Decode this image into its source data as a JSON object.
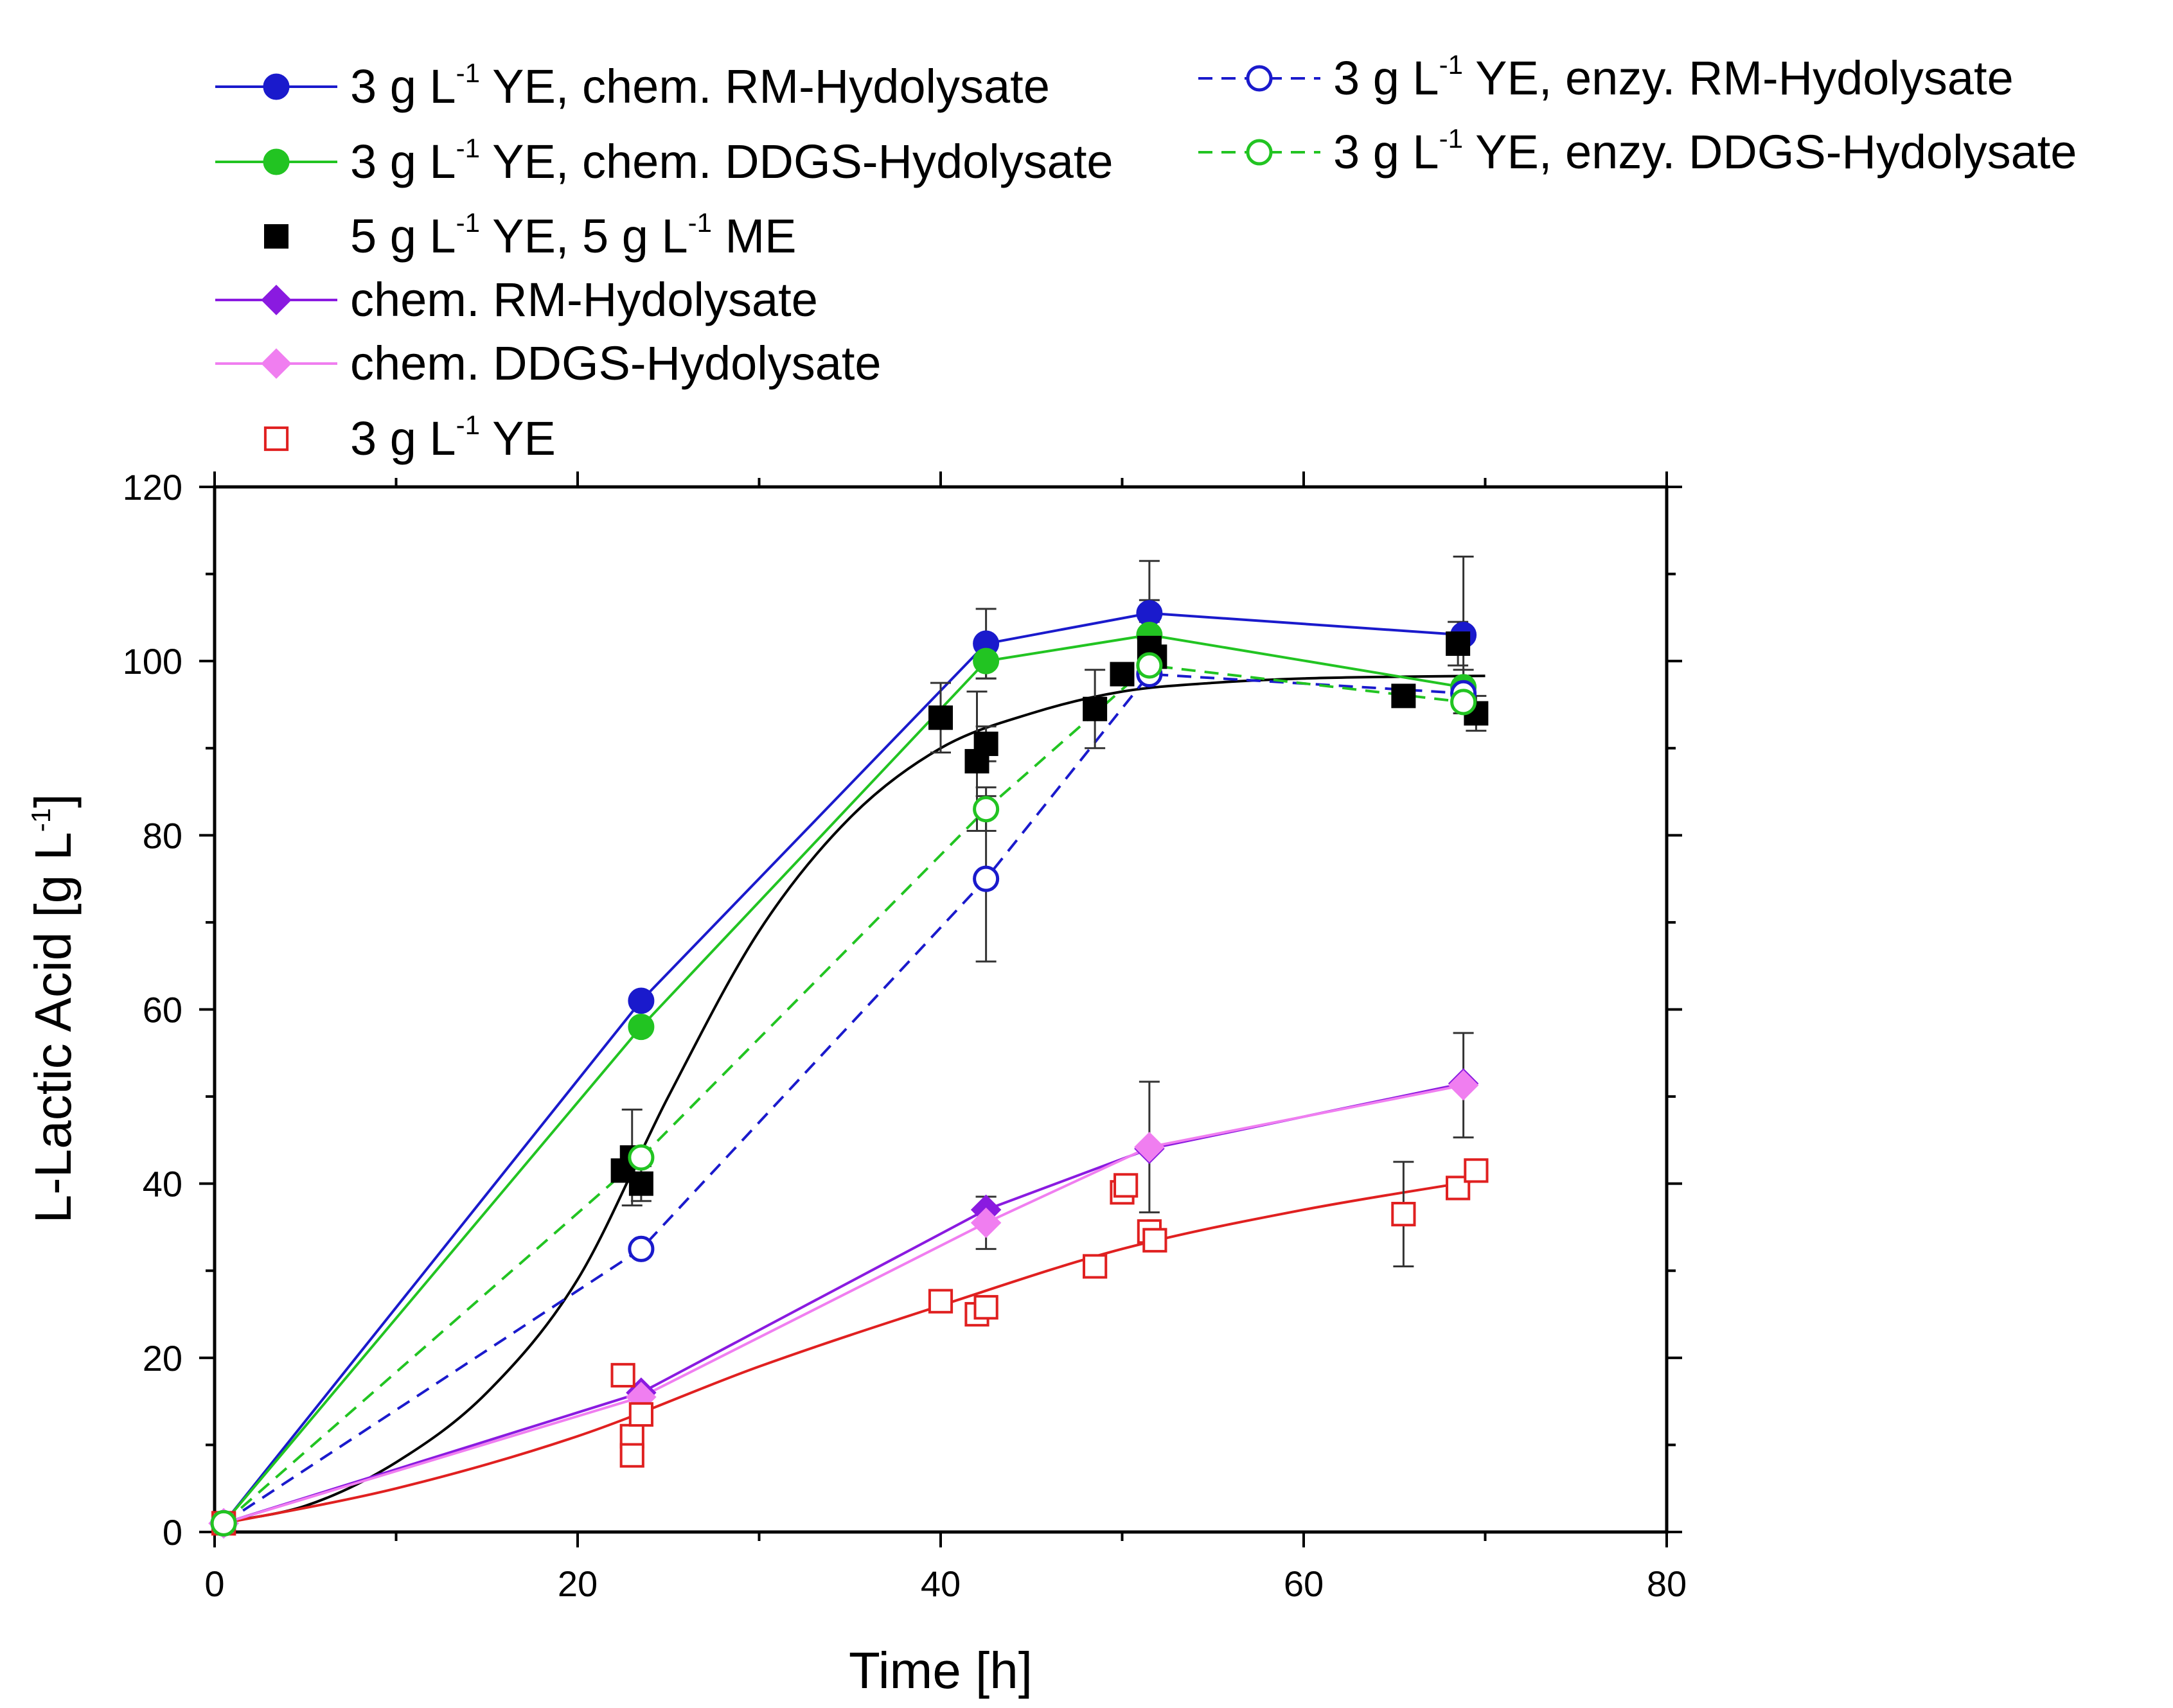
{
  "chart_data": {
    "type": "line",
    "title": "",
    "xlabel": "Time   [h]",
    "ylabel": "L-Lactic Acid   [g L",
    "ylabel_sup": "-1",
    "ylabel_end": "]",
    "xlim": [
      0,
      80
    ],
    "ylim": [
      0,
      120
    ],
    "xticks": [
      0,
      20,
      40,
      60,
      80
    ],
    "yticks": [
      0,
      20,
      40,
      60,
      80,
      100,
      120
    ],
    "xtick_labels": [
      "0",
      "20",
      "40",
      "60",
      "80"
    ],
    "ytick_labels": [
      "0",
      "20",
      "40",
      "60",
      "80",
      "100",
      "120"
    ],
    "legend_position": "top",
    "series": [
      {
        "name": "3 g L-1 YE, chem. RM-Hydolysate",
        "legend": {
          "pre": "3 g L",
          "sup": "-1",
          "post": " YE, chem. RM-Hydolysate"
        },
        "color": "#1a1acc",
        "marker": "circle-filled",
        "line": "solid",
        "x": [
          0.5,
          23.5,
          42.5,
          51.5,
          68.8
        ],
        "y": [
          1,
          61,
          102,
          105.5,
          103
        ],
        "err": [
          0,
          0,
          4,
          6,
          9
        ]
      },
      {
        "name": "3 g L-1 YE, chem. DDGS-Hydolysate",
        "legend": {
          "pre": "3 g L",
          "sup": "-1",
          "post": " YE, chem. DDGS-Hydolysate"
        },
        "color": "#22c422",
        "marker": "circle-filled",
        "line": "solid",
        "x": [
          0.5,
          23.5,
          42.5,
          51.5,
          68.8
        ],
        "y": [
          1,
          58,
          100,
          103,
          97
        ],
        "err": [
          0,
          0,
          2,
          4,
          2
        ]
      },
      {
        "name": "5 g L-1 YE, 5 g L-1 ME",
        "legend": {
          "pre": "5 g L",
          "sup": "-1",
          "post": " YE, 5 g L",
          "sup2": "-1",
          "post2": " ME"
        },
        "color": "#000000",
        "marker": "square-filled",
        "line": "none",
        "x": [
          0.5,
          22.5,
          23,
          23.5,
          40,
          42,
          42.5,
          48.5,
          50,
          51.5,
          51.8,
          65.5,
          68.5,
          69.5
        ],
        "y": [
          1,
          41.5,
          43,
          40,
          93.5,
          88.5,
          90.5,
          94.5,
          98.5,
          101.5,
          100.5,
          96,
          102,
          94
        ],
        "err": [
          0,
          0,
          5.5,
          2,
          4,
          8,
          2,
          4.5,
          0,
          3,
          0,
          0,
          2.5,
          2
        ]
      },
      {
        "name": "chem. RM-Hydolysate",
        "legend": {
          "pre": "chem. RM-Hydolysate"
        },
        "color": "#8a1ae0",
        "marker": "diamond-filled",
        "line": "solid",
        "x": [
          0.5,
          23.5,
          42.5,
          51.5,
          68.8
        ],
        "y": [
          1,
          16,
          37,
          44,
          51.5
        ],
        "err": [
          0,
          0,
          1.5,
          0,
          0
        ]
      },
      {
        "name": "chem. DDGS-Hydolysate",
        "legend": {
          "pre": "chem. DDGS-Hydolysate"
        },
        "color": "#f07ef0",
        "marker": "diamond-filled",
        "line": "solid",
        "x": [
          0.5,
          23.5,
          42.5,
          51.5,
          68.8
        ],
        "y": [
          1,
          15.5,
          35.5,
          44.2,
          51.3
        ],
        "err": [
          0,
          0,
          3,
          7.5,
          6
        ]
      },
      {
        "name": "3 g L-1 YE",
        "legend": {
          "pre": "3 g L",
          "sup": "-1",
          "post": " YE"
        },
        "color": "#e02020",
        "marker": "square-open-cross",
        "line": "none",
        "x": [
          0.5,
          22.5,
          23,
          23,
          23.5,
          40,
          42,
          42.5,
          48.5,
          50,
          50.2,
          51.5,
          51.8,
          65.5,
          68.5,
          69.5
        ],
        "y": [
          1,
          18,
          11,
          8.8,
          13.5,
          26.5,
          25,
          25.8,
          30.5,
          39,
          39.8,
          34.5,
          33.5,
          36.5,
          39.5,
          41.5
        ],
        "err": [
          0,
          0,
          0,
          0,
          0,
          0,
          0,
          0,
          0,
          0,
          0,
          0,
          0,
          6,
          0,
          0
        ]
      },
      {
        "name": "3 g L-1 YE, enzy. RM-Hydolysate",
        "legend": {
          "pre": "3 g L",
          "sup": "-1",
          "post": " YE, enzy. RM-Hydolysate"
        },
        "color": "#1a1acc",
        "marker": "circle-open",
        "line": "dashed",
        "x": [
          0.5,
          23.5,
          42.5,
          51.5,
          68.8
        ],
        "y": [
          1,
          32.5,
          75,
          98.5,
          96.3
        ],
        "err": [
          0,
          0,
          9.5,
          0,
          0
        ]
      },
      {
        "name": "3 g L-1 YE, enzy. DDGS-Hydolysate",
        "legend": {
          "pre": "3 g L",
          "sup": "-1",
          "post": " YE, enzy. DDGS-Hydolysate"
        },
        "color": "#22c422",
        "marker": "circle-open",
        "line": "dashed",
        "x": [
          0.5,
          23.5,
          42.5,
          51.5,
          68.8
        ],
        "y": [
          1,
          43,
          83,
          99.5,
          95.3
        ],
        "err": [
          0,
          0,
          2.5,
          0,
          0
        ]
      }
    ],
    "fit_curves": [
      {
        "name": "fit 5 g L-1 YE, 5 g L-1 ME",
        "color": "#000000",
        "x": [
          0,
          5,
          10,
          15,
          20,
          25,
          30,
          35,
          40,
          45,
          50,
          55,
          60,
          65,
          70
        ],
        "y": [
          1,
          3,
          8,
          16,
          29,
          50,
          69,
          82,
          90,
          94,
          96.5,
          97.5,
          98,
          98.2,
          98.3
        ]
      },
      {
        "name": "fit 3 g L-1 YE",
        "color": "#e02020",
        "x": [
          0.5,
          10,
          20,
          30,
          40,
          50,
          60,
          70
        ],
        "y": [
          1,
          5,
          11,
          19,
          26,
          32.5,
          37,
          40.5
        ]
      }
    ]
  }
}
